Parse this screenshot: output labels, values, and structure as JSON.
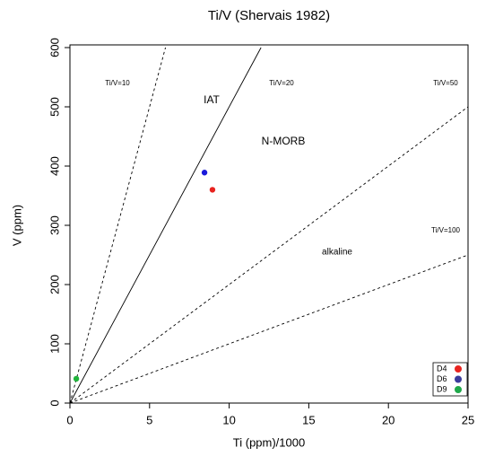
{
  "chart_data": {
    "type": "scatter",
    "title": "Ti/V (Shervais 1982)",
    "x_label": "Ti (ppm)/1000",
    "y_label": "V (ppm)",
    "xlim": [
      0,
      25
    ],
    "ylim": [
      0,
      600
    ],
    "xticks": [
      0,
      5,
      10,
      15,
      20,
      25
    ],
    "yticks": [
      0,
      100,
      200,
      300,
      400,
      500,
      600
    ],
    "series": [
      {
        "name": "D4",
        "color": "#e8231f",
        "x": [
          8.95
        ],
        "values": [
          360
        ]
      },
      {
        "name": "D6",
        "color": "#1a1adb",
        "x": [
          8.45
        ],
        "values": [
          389
        ]
      },
      {
        "name": "D9",
        "color": "#1fb33a",
        "x": [
          0.4
        ],
        "values": [
          41
        ]
      }
    ],
    "legend_colors": [
      "#e8231f",
      "#3b3b9c",
      "#1fa84a"
    ],
    "lines": [
      {
        "label": "Ti/V=10",
        "x": [
          0,
          6
        ],
        "values": [
          0,
          600
        ],
        "dashed": true
      },
      {
        "label": "Ti/V=20",
        "x": [
          0,
          12
        ],
        "values": [
          0,
          600
        ],
        "dashed": false
      },
      {
        "label": "Ti/V=50",
        "x": [
          0,
          25
        ],
        "values": [
          0,
          500
        ],
        "dashed": true
      },
      {
        "label": "Ti/V=100",
        "x": [
          0,
          25
        ],
        "values": [
          0,
          250
        ],
        "dashed": true
      }
    ],
    "annotations": [
      "IAT",
      "N-MORB",
      "alkaline"
    ]
  }
}
